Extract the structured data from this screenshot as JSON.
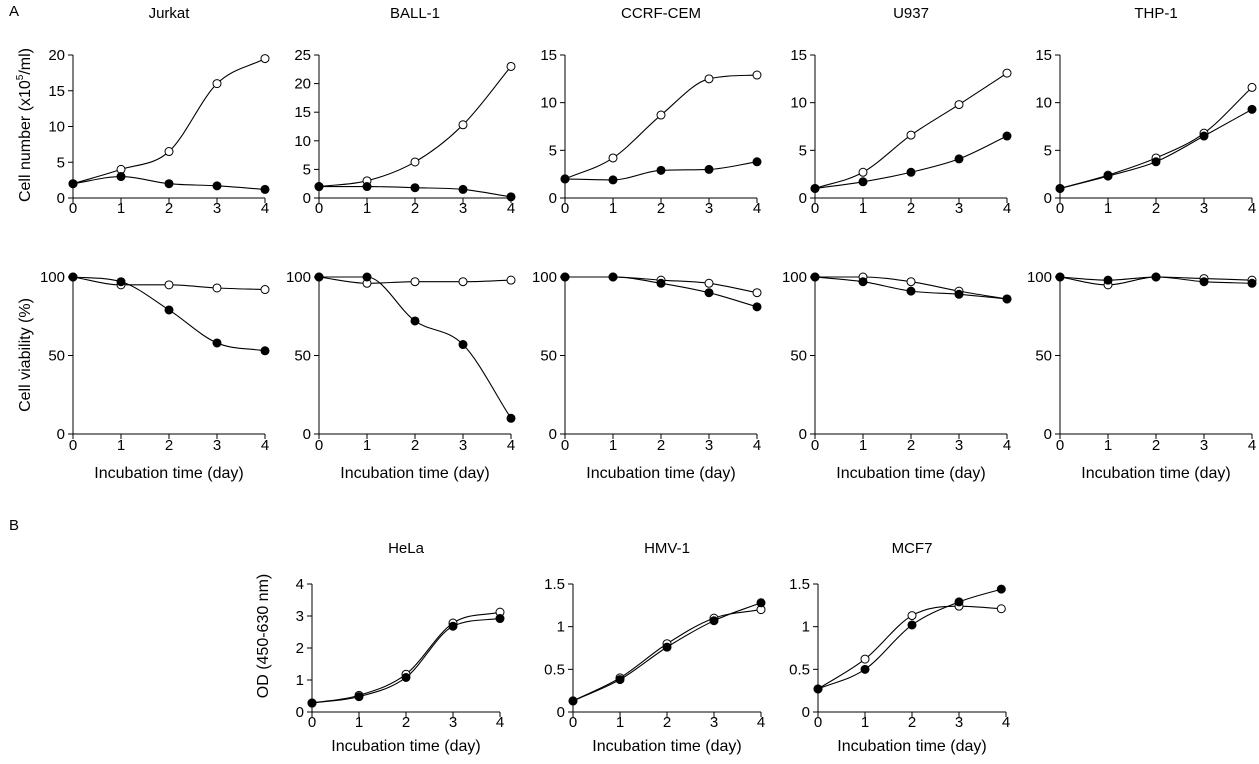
{
  "panels": {
    "a": "A",
    "b": "B"
  },
  "labels": {
    "xlabel": "Incubation time (day)",
    "ylabel_number_prefix": "Cell number (x10",
    "ylabel_number_sup": "5",
    "ylabel_number_suffix": "/ml)",
    "ylabel_viability": "Cell viability (%)",
    "ylabel_od": "OD (450-630 nm)"
  },
  "colors": {
    "open_marker_fill": "#ffffff",
    "filled_marker_fill": "#000000",
    "line": "#000000"
  },
  "chart_data": [
    {
      "type": "line",
      "title": "Jurkat",
      "ylim": [
        0,
        20
      ],
      "yticks": [
        "0",
        "5",
        "10",
        "15",
        "20"
      ],
      "x": [
        0,
        1,
        2,
        3,
        4
      ],
      "xticks": [
        "0",
        "1",
        "2",
        "3",
        "4"
      ],
      "series": [
        {
          "marker": "open",
          "values": [
            2.0,
            4.0,
            6.5,
            16.0,
            19.5
          ]
        },
        {
          "marker": "filled",
          "values": [
            2.0,
            3.0,
            2.0,
            1.7,
            1.2
          ]
        }
      ]
    },
    {
      "type": "line",
      "title": "BALL-1",
      "ylim": [
        0,
        25
      ],
      "yticks": [
        "0",
        "5",
        "10",
        "15",
        "20",
        "25"
      ],
      "x": [
        0,
        1,
        2,
        3,
        4
      ],
      "xticks": [
        "0",
        "1",
        "2",
        "3",
        "4"
      ],
      "series": [
        {
          "marker": "open",
          "values": [
            2.0,
            3.0,
            6.3,
            12.8,
            23.0
          ]
        },
        {
          "marker": "filled",
          "values": [
            2.0,
            2.0,
            1.8,
            1.5,
            0.2
          ]
        }
      ]
    },
    {
      "type": "line",
      "title": "CCRF-CEM",
      "ylim": [
        0,
        15
      ],
      "yticks": [
        "0",
        "5",
        "10",
        "15"
      ],
      "x": [
        0,
        1,
        2,
        3,
        4
      ],
      "xticks": [
        "0",
        "1",
        "2",
        "3",
        "4"
      ],
      "series": [
        {
          "marker": "open",
          "values": [
            2.0,
            4.2,
            8.7,
            12.5,
            12.9
          ]
        },
        {
          "marker": "filled",
          "values": [
            2.0,
            1.9,
            2.9,
            3.0,
            3.8
          ]
        }
      ]
    },
    {
      "type": "line",
      "title": "U937",
      "ylim": [
        0,
        15
      ],
      "yticks": [
        "0",
        "5",
        "10",
        "15"
      ],
      "x": [
        0,
        1,
        2,
        3,
        4
      ],
      "xticks": [
        "0",
        "1",
        "2",
        "3",
        "4"
      ],
      "series": [
        {
          "marker": "open",
          "values": [
            1.0,
            2.7,
            6.6,
            9.8,
            13.1
          ]
        },
        {
          "marker": "filled",
          "values": [
            1.0,
            1.7,
            2.7,
            4.1,
            6.5
          ]
        }
      ]
    },
    {
      "type": "line",
      "title": "THP-1",
      "ylim": [
        0,
        15
      ],
      "yticks": [
        "0",
        "5",
        "10",
        "15"
      ],
      "x": [
        0,
        1,
        2,
        3,
        4
      ],
      "xticks": [
        "0",
        "1",
        "2",
        "3",
        "4"
      ],
      "series": [
        {
          "marker": "open",
          "values": [
            1.0,
            2.4,
            4.2,
            6.8,
            11.6
          ]
        },
        {
          "marker": "filled",
          "values": [
            1.0,
            2.3,
            3.8,
            6.5,
            9.3
          ]
        }
      ]
    },
    {
      "type": "line",
      "title": "",
      "ylim": [
        0,
        100
      ],
      "yticks": [
        "0",
        "50",
        "100"
      ],
      "x": [
        0,
        1,
        2,
        3,
        4
      ],
      "xticks": [
        "0",
        "1",
        "2",
        "3",
        "4"
      ],
      "series": [
        {
          "marker": "open",
          "values": [
            100,
            95,
            95,
            93,
            92
          ]
        },
        {
          "marker": "filled",
          "values": [
            100,
            97,
            79,
            58,
            53
          ]
        }
      ]
    },
    {
      "type": "line",
      "title": "",
      "ylim": [
        0,
        100
      ],
      "yticks": [
        "0",
        "50",
        "100"
      ],
      "x": [
        0,
        1,
        2,
        3,
        4
      ],
      "xticks": [
        "0",
        "1",
        "2",
        "3",
        "4"
      ],
      "series": [
        {
          "marker": "open",
          "values": [
            100,
            96,
            97,
            97,
            98
          ]
        },
        {
          "marker": "filled",
          "values": [
            100,
            100,
            72,
            57,
            10
          ]
        }
      ]
    },
    {
      "type": "line",
      "title": "",
      "ylim": [
        0,
        100
      ],
      "yticks": [
        "0",
        "50",
        "100"
      ],
      "x": [
        0,
        1,
        2,
        3,
        4
      ],
      "xticks": [
        "0",
        "1",
        "2",
        "3",
        "4"
      ],
      "series": [
        {
          "marker": "open",
          "values": [
            100,
            100,
            98,
            96,
            90
          ]
        },
        {
          "marker": "filled",
          "values": [
            100,
            100,
            96,
            90,
            81
          ]
        }
      ]
    },
    {
      "type": "line",
      "title": "",
      "ylim": [
        0,
        100
      ],
      "yticks": [
        "0",
        "50",
        "100"
      ],
      "x": [
        0,
        1,
        2,
        3,
        4
      ],
      "xticks": [
        "0",
        "1",
        "2",
        "3",
        "4"
      ],
      "series": [
        {
          "marker": "open",
          "values": [
            100,
            100,
            97,
            91,
            86
          ]
        },
        {
          "marker": "filled",
          "values": [
            100,
            97,
            91,
            89,
            86
          ]
        }
      ]
    },
    {
      "type": "line",
      "title": "",
      "ylim": [
        0,
        100
      ],
      "yticks": [
        "0",
        "50",
        "100"
      ],
      "x": [
        0,
        1,
        2,
        3,
        4
      ],
      "xticks": [
        "0",
        "1",
        "2",
        "3",
        "4"
      ],
      "series": [
        {
          "marker": "open",
          "values": [
            100,
            95,
            100,
            99,
            98
          ]
        },
        {
          "marker": "filled",
          "values": [
            100,
            98,
            100,
            97,
            96
          ]
        }
      ]
    },
    {
      "type": "line",
      "title": "HeLa",
      "ylim": [
        0,
        4
      ],
      "yticks": [
        "0",
        "1",
        "2",
        "3",
        "4"
      ],
      "x": [
        0,
        1,
        2,
        3,
        4
      ],
      "xticks": [
        "0",
        "1",
        "2",
        "3",
        "4"
      ],
      "series": [
        {
          "marker": "open",
          "values": [
            0.28,
            0.52,
            1.18,
            2.78,
            3.12
          ]
        },
        {
          "marker": "filled",
          "values": [
            0.28,
            0.48,
            1.08,
            2.68,
            2.92
          ]
        }
      ]
    },
    {
      "type": "line",
      "title": "HMV-1",
      "ylim": [
        0,
        1.5
      ],
      "yticks": [
        "0",
        "0.5",
        "1",
        "1.5"
      ],
      "x": [
        0,
        1,
        2,
        3,
        4
      ],
      "xticks": [
        "0",
        "1",
        "2",
        "3",
        "4"
      ],
      "series": [
        {
          "marker": "open",
          "values": [
            0.13,
            0.4,
            0.8,
            1.1,
            1.2
          ]
        },
        {
          "marker": "filled",
          "values": [
            0.13,
            0.38,
            0.76,
            1.07,
            1.28
          ]
        }
      ]
    },
    {
      "type": "line",
      "title": "MCF7",
      "ylim": [
        0,
        1.5
      ],
      "yticks": [
        "0",
        "0.5",
        "1",
        "1.5"
      ],
      "x": [
        0,
        1,
        2,
        3,
        3.9
      ],
      "xticks": [
        "0",
        "1",
        "2",
        "3",
        "4"
      ],
      "series": [
        {
          "marker": "open",
          "values": [
            0.27,
            0.62,
            1.13,
            1.24,
            1.21
          ]
        },
        {
          "marker": "filled",
          "values": [
            0.27,
            0.5,
            1.02,
            1.29,
            1.44
          ]
        }
      ]
    }
  ]
}
